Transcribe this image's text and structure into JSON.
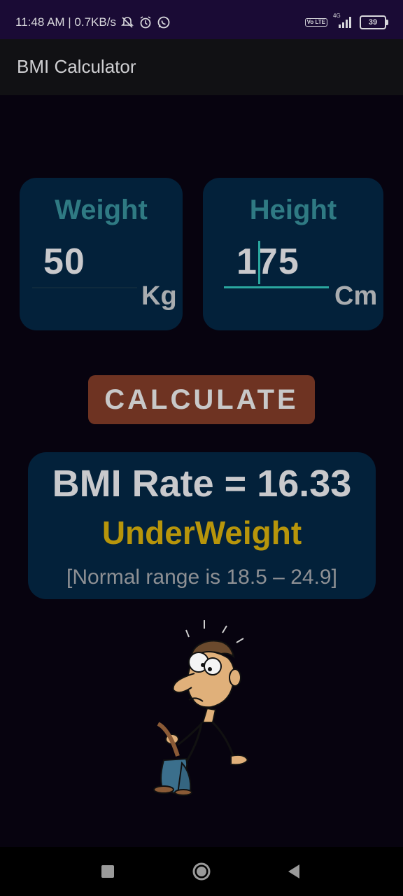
{
  "status_bar": {
    "time_speed": "11:48 AM | 0.7KB/s",
    "network_small": "4G",
    "volte": "Vo LTE",
    "battery": "39"
  },
  "app_bar": {
    "title": "BMI Calculator"
  },
  "weight_card": {
    "label": "Weight",
    "value": "50",
    "unit": "Kg"
  },
  "height_card": {
    "label": "Height",
    "value": "175",
    "unit": "Cm"
  },
  "calculate_button": {
    "label": "CALCULATE"
  },
  "result": {
    "rate_text": "BMI Rate = 16.33",
    "status": "UnderWeight",
    "normal_range": "[Normal range is 18.5 – 24.9]"
  },
  "colors": {
    "background": "#07030f",
    "card": "#03213a",
    "label_teal": "#2f7a83",
    "accent_cursor": "#2aa79f",
    "button": "#6e3322",
    "status_yellow": "#b7950b"
  },
  "icons": {
    "status": [
      "mute-icon",
      "alarm-icon",
      "whatsapp-icon",
      "signal-icon",
      "battery-icon"
    ],
    "illustration": "thin-man-holding-pants-illustration",
    "nav": [
      "recent-apps-icon",
      "home-icon",
      "back-icon"
    ]
  }
}
